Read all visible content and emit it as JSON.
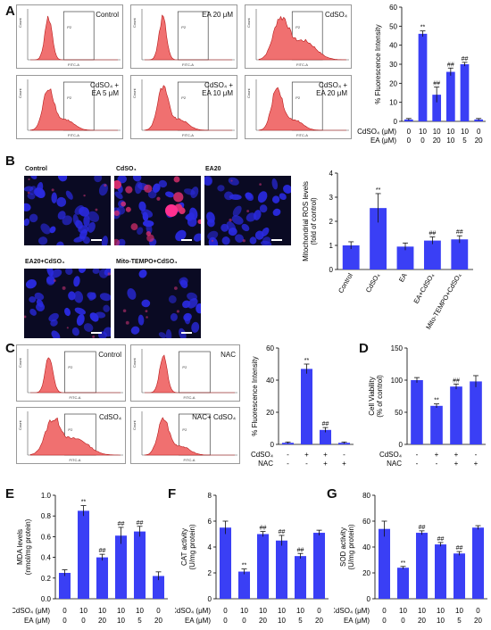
{
  "panels": {
    "A": {
      "label": "A",
      "flow_plots": [
        {
          "label": "Control",
          "gate": "P2",
          "xaxis": "FITC-A",
          "yaxis": "Count"
        },
        {
          "label": "EA 20 μM",
          "gate": "P2",
          "xaxis": "FITC-A",
          "yaxis": "Count"
        },
        {
          "label": "CdSO₄",
          "gate": "P2",
          "xaxis": "FITC-A",
          "yaxis": "Count"
        },
        {
          "label": "CdSO₄ +\nEA 5 μM",
          "gate": "P2",
          "xaxis": "FITC-A",
          "yaxis": "Count"
        },
        {
          "label": "CdSO₄ +\nEA 10 μM",
          "gate": "P2",
          "xaxis": "FITC-A",
          "yaxis": "Count"
        },
        {
          "label": "CdSO₄ +\nEA 20 μM",
          "gate": "P2",
          "xaxis": "FITC-A",
          "yaxis": "Count"
        }
      ]
    },
    "B": {
      "label": "B",
      "images": [
        {
          "title": "Control"
        },
        {
          "title": "CdSO₄"
        },
        {
          "title": "EA20"
        },
        {
          "title": "EA20+CdSO₄"
        },
        {
          "title": "Mito-TEMPO+CdSO₄"
        }
      ]
    },
    "C": {
      "label": "C",
      "flow_plots": [
        {
          "label": "Control",
          "gate": "P2",
          "xaxis": "FITC-A",
          "yaxis": "Count"
        },
        {
          "label": "NAC",
          "gate": "P2",
          "xaxis": "FITC-A",
          "yaxis": "Count"
        },
        {
          "label": "CdSO₄",
          "gate": "P2",
          "xaxis": "FITC-A",
          "yaxis": "Count"
        },
        {
          "label": "NAC+ CdSO₄",
          "gate": "P2",
          "xaxis": "FITC-A",
          "yaxis": "Count"
        }
      ]
    },
    "D": {
      "label": "D"
    },
    "E": {
      "label": "E"
    },
    "F": {
      "label": "F"
    },
    "G": {
      "label": "G"
    }
  },
  "colors": {
    "bar": "#3a3ff5",
    "hist": "#f07070",
    "hist_edge": "#b81818",
    "nucleus": "#2a2ae0",
    "ros": "#e03070"
  },
  "chart_data": [
    {
      "id": "chartA",
      "type": "bar",
      "ylabel": "% Fluorescence Intensity",
      "ylim": [
        0,
        60
      ],
      "yticks": [
        0,
        10,
        20,
        30,
        40,
        50,
        60
      ],
      "values": [
        1,
        46,
        14,
        26,
        30,
        1
      ],
      "errors": [
        0.5,
        1.5,
        4,
        2,
        1,
        0.5
      ],
      "sig": [
        "",
        "**",
        "##",
        "##",
        "##",
        ""
      ],
      "row_labels": [
        "CdSO₄ (μM)",
        "EA (μM)"
      ],
      "rows": [
        [
          "0",
          "10",
          "10",
          "10",
          "10",
          "0"
        ],
        [
          "0",
          "0",
          "20",
          "10",
          "5",
          "20"
        ]
      ]
    },
    {
      "id": "chartB",
      "type": "bar",
      "ylabel": "Mitochondrial ROS levels\n(fold of control)",
      "ylim": [
        0,
        4
      ],
      "yticks": [
        0,
        1,
        2,
        3,
        4
      ],
      "values": [
        1.0,
        2.55,
        0.95,
        1.2,
        1.25
      ],
      "errors": [
        0.15,
        0.6,
        0.15,
        0.15,
        0.15
      ],
      "sig": [
        "",
        "**",
        "",
        "##",
        "##"
      ],
      "categories": [
        "Control",
        "CdSO₄",
        "EA",
        "EA+CdSO₄",
        "Mito-TEMPO+CdSO₄"
      ]
    },
    {
      "id": "chartC",
      "type": "bar",
      "ylabel": "% Fluorescence Intensity",
      "ylim": [
        0,
        60
      ],
      "yticks": [
        0,
        20,
        40,
        60
      ],
      "values": [
        1,
        47,
        9,
        1
      ],
      "errors": [
        0.5,
        3,
        1.5,
        0.5
      ],
      "sig": [
        "",
        "**",
        "##",
        ""
      ],
      "row_labels": [
        "CdSO₄",
        "NAC"
      ],
      "rows": [
        [
          "-",
          "+",
          "+",
          "-"
        ],
        [
          "-",
          "-",
          "+",
          "+"
        ]
      ]
    },
    {
      "id": "chartD",
      "type": "bar",
      "ylabel": "Cell Viability\n(% of control)",
      "ylim": [
        0,
        150
      ],
      "yticks": [
        0,
        50,
        100,
        150
      ],
      "values": [
        100,
        60,
        90,
        98
      ],
      "errors": [
        4,
        3,
        4,
        9
      ],
      "sig": [
        "",
        "**",
        "##",
        ""
      ],
      "row_labels": [
        "CdSO₄",
        "NAC"
      ],
      "rows": [
        [
          "-",
          "+",
          "+",
          "-"
        ],
        [
          "-",
          "-",
          "+",
          "+"
        ]
      ]
    },
    {
      "id": "chartE",
      "type": "bar",
      "ylabel": "MDA levels\n(nmol/mg protein)",
      "ylim": [
        0,
        1.0
      ],
      "yticks": [
        0.0,
        0.2,
        0.4,
        0.6,
        0.8,
        1.0
      ],
      "values": [
        0.25,
        0.85,
        0.4,
        0.61,
        0.65,
        0.22
      ],
      "errors": [
        0.03,
        0.05,
        0.03,
        0.08,
        0.05,
        0.04
      ],
      "sig": [
        "",
        "**",
        "##",
        "##",
        "##",
        ""
      ],
      "row_labels": [
        "CdSO₄ (μM)",
        "EA (μM)"
      ],
      "rows": [
        [
          "0",
          "10",
          "10",
          "10",
          "10",
          "0"
        ],
        [
          "0",
          "0",
          "20",
          "10",
          "5",
          "20"
        ]
      ]
    },
    {
      "id": "chartF",
      "type": "bar",
      "ylabel": "CAT activity\n(U/mg protein)",
      "ylim": [
        0,
        8
      ],
      "yticks": [
        0,
        2,
        4,
        6,
        8
      ],
      "values": [
        5.5,
        2.1,
        5.0,
        4.5,
        3.3,
        5.1
      ],
      "errors": [
        0.5,
        0.2,
        0.2,
        0.4,
        0.2,
        0.2
      ],
      "sig": [
        "",
        "**",
        "##",
        "##",
        "##",
        ""
      ],
      "row_labels": [
        "CdSO₄ (μM)",
        "EA (μM)"
      ],
      "rows": [
        [
          "0",
          "10",
          "10",
          "10",
          "10",
          "0"
        ],
        [
          "0",
          "0",
          "20",
          "10",
          "5",
          "20"
        ]
      ]
    },
    {
      "id": "chartG",
      "type": "bar",
      "ylabel": "SOD activity\n(U/mg protein)",
      "ylim": [
        0,
        80
      ],
      "yticks": [
        0,
        20,
        40,
        60,
        80
      ],
      "values": [
        54,
        24,
        51,
        42,
        35,
        55
      ],
      "errors": [
        6,
        1,
        1.5,
        1.5,
        1.5,
        1.5
      ],
      "sig": [
        "",
        "**",
        "##",
        "##",
        "##",
        ""
      ],
      "row_labels": [
        "CdSO₄ (μM)",
        "EA (μM)"
      ],
      "rows": [
        [
          "0",
          "10",
          "10",
          "10",
          "10",
          "0"
        ],
        [
          "0",
          "0",
          "20",
          "10",
          "5",
          "20"
        ]
      ]
    }
  ]
}
